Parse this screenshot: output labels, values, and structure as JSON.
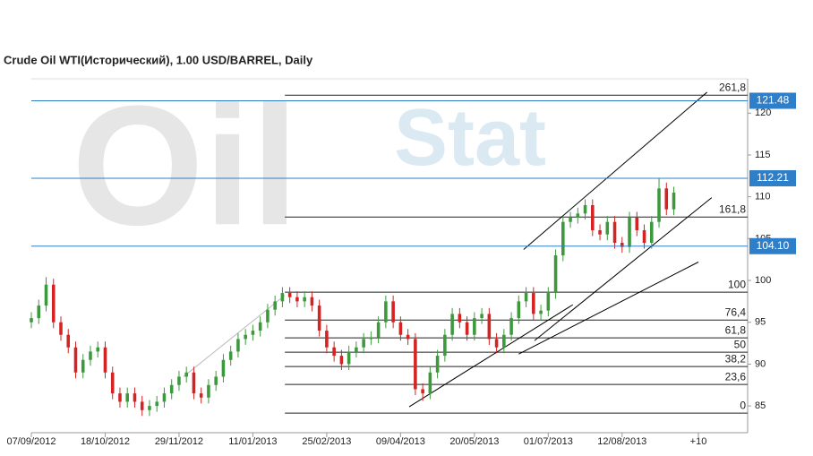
{
  "chart_data": {
    "type": "candlestick",
    "title": "Crude Oil WTI(Исторический), 1.00 USD/BARREL, Daily",
    "watermark": [
      "Oil",
      "Stat"
    ],
    "x": [
      0,
      3,
      6,
      9,
      12,
      15,
      18,
      21,
      24,
      27,
      30,
      33,
      36,
      39,
      42,
      45,
      48,
      51,
      54,
      57,
      60,
      63,
      66,
      69,
      72,
      75,
      78,
      81,
      84,
      87,
      90,
      93,
      96,
      99,
      102,
      105,
      108,
      111,
      114,
      117,
      120,
      123,
      126,
      129,
      132,
      135,
      138,
      141,
      144,
      147,
      150,
      153,
      156,
      159,
      162,
      165,
      168,
      171,
      174,
      177,
      180,
      183,
      186,
      189,
      192,
      195,
      198,
      201,
      204,
      207,
      210,
      213,
      216,
      219,
      222,
      225,
      228,
      231,
      234,
      237,
      240,
      243,
      246,
      249,
      252,
      255,
      258,
      261
    ],
    "open": [
      95,
      95.5,
      97,
      99.5,
      95,
      93.5,
      92,
      89,
      90.5,
      91.5,
      92,
      89,
      86.5,
      85.5,
      86.5,
      85.5,
      84.5,
      85,
      85.5,
      86.5,
      87.5,
      88.5,
      89,
      86.5,
      86,
      87.5,
      88.5,
      90.5,
      91.5,
      93,
      93.5,
      94,
      95,
      96.5,
      97.5,
      98.5,
      98,
      97.5,
      98,
      97,
      94,
      92,
      91,
      90,
      91.5,
      92,
      93,
      93.2,
      95,
      97.5,
      95,
      93.5,
      93,
      87,
      86.5,
      89,
      91,
      93.5,
      96,
      95,
      93.5,
      95.5,
      96,
      93,
      92,
      93.5,
      95.5,
      97.5,
      98.5,
      96,
      96.4,
      98.5,
      103,
      107,
      107.5,
      108,
      109,
      106,
      105.5,
      107,
      104.5,
      104,
      107.5,
      106,
      104.5,
      107,
      111,
      108.5
    ],
    "high": [
      96.2,
      97.7,
      100.4,
      100.2,
      95.7,
      94.2,
      92.7,
      91.2,
      92.2,
      92.7,
      92.7,
      89.7,
      87.2,
      87.2,
      87.2,
      86.2,
      85.7,
      86.2,
      87.2,
      88.2,
      89.2,
      89.7,
      89.7,
      87.2,
      88.2,
      89.2,
      91.2,
      92.2,
      93.7,
      94.2,
      94.7,
      95.7,
      97.2,
      98.2,
      99.2,
      99.2,
      98.7,
      98.7,
      98.7,
      97.7,
      94.7,
      92.7,
      91.7,
      92.2,
      92.7,
      93.7,
      93.9,
      95.7,
      98.2,
      98.2,
      95.7,
      94.2,
      93.7,
      87.7,
      89.7,
      91.7,
      94.2,
      96.7,
      96.7,
      95.7,
      96.2,
      96.7,
      96.7,
      93.7,
      94.2,
      96.2,
      98.2,
      99.2,
      99.2,
      97.1,
      99.2,
      103.7,
      107.7,
      108.2,
      108.7,
      109.7,
      109.7,
      106.7,
      107.7,
      107.7,
      105.2,
      108.2,
      108.2,
      106.7,
      107.7,
      112.2,
      111.7,
      111.2
    ],
    "low": [
      94.3,
      94.8,
      96.3,
      94.3,
      92.8,
      91.3,
      88.3,
      88.3,
      89.8,
      90.8,
      88.3,
      85.8,
      84.8,
      84.8,
      84.8,
      83.8,
      83.8,
      84.3,
      84.8,
      85.8,
      86.8,
      87.8,
      85.8,
      85.3,
      85.3,
      86.8,
      87.8,
      89.8,
      90.8,
      92.3,
      92.8,
      93.3,
      94.3,
      95.8,
      96.8,
      97.3,
      96.8,
      96.8,
      96.3,
      93.3,
      91.3,
      90.3,
      89.3,
      89.3,
      90.8,
      91.3,
      92.3,
      92.5,
      94.3,
      94.3,
      92.8,
      92.3,
      86.3,
      85.6,
      85.8,
      88.3,
      90.3,
      92.8,
      94.3,
      92.8,
      92.8,
      94.8,
      92.3,
      91.3,
      91.3,
      92.8,
      94.8,
      96.8,
      95.3,
      95.3,
      95.7,
      97.8,
      102.3,
      106.3,
      106.8,
      107.3,
      105.3,
      104.8,
      104.8,
      103.8,
      103.3,
      103.3,
      105.3,
      103.8,
      103.8,
      106.3,
      107.8,
      107.8
    ],
    "close": [
      95.5,
      97,
      99.5,
      95,
      93.5,
      92,
      89,
      90.5,
      91.5,
      92,
      89,
      86.5,
      85.5,
      86.5,
      85.5,
      84.5,
      85,
      85.5,
      86.5,
      87.5,
      88.5,
      89,
      86.5,
      86,
      87.5,
      88.5,
      90.5,
      91.5,
      93,
      93.5,
      94,
      95,
      96.5,
      97.5,
      98.5,
      98,
      97.5,
      98,
      97,
      94,
      92,
      91,
      90,
      91.5,
      92,
      93,
      93.2,
      95,
      97.5,
      95,
      93.5,
      93,
      87,
      86.5,
      89,
      91,
      93.5,
      96,
      95,
      93.5,
      95.5,
      96,
      93,
      92,
      93.5,
      95.5,
      97.5,
      98.5,
      96,
      96.4,
      98.5,
      103,
      107,
      107.5,
      108,
      109,
      106,
      105.5,
      107,
      104.5,
      104,
      107.5,
      106,
      104.5,
      107,
      111,
      108.5,
      110.5
    ],
    "up_color": "#3c9a3c",
    "down_color": "#d42323",
    "xlim": [
      0,
      291
    ],
    "xticks": [
      {
        "value": 0,
        "label": "07/09/2012"
      },
      {
        "value": 30,
        "label": "18/10/2012"
      },
      {
        "value": 60,
        "label": "29/11/2012"
      },
      {
        "value": 90,
        "label": "11/01/2013"
      },
      {
        "value": 120,
        "label": "25/02/2013"
      },
      {
        "value": 150,
        "label": "09/04/2013"
      },
      {
        "value": 180,
        "label": "20/05/2013"
      },
      {
        "value": 210,
        "label": "01/07/2013"
      },
      {
        "value": 240,
        "label": "12/08/2013"
      },
      {
        "value": 271,
        "label": "+10"
      }
    ],
    "ylim": [
      81.8,
      124.1
    ],
    "yticks": [
      85,
      90,
      95,
      100,
      105,
      110,
      115,
      120
    ],
    "levels": [
      {
        "value": 121.48,
        "label": "121.48"
      },
      {
        "value": 112.21,
        "label": "112.21"
      },
      {
        "value": 104.1,
        "label": "104.10"
      }
    ],
    "level_color": "#2f7fc8",
    "fibonacci": {
      "x_start": 103,
      "levels": [
        {
          "value": 122.14,
          "label": "261,8"
        },
        {
          "value": 107.58,
          "label": "161,8"
        },
        {
          "value": 98.6,
          "label": "100"
        },
        {
          "value": 95.27,
          "label": "76,4"
        },
        {
          "value": 93.14,
          "label": "61,8"
        },
        {
          "value": 91.42,
          "label": "50"
        },
        {
          "value": 89.71,
          "label": "38,2"
        },
        {
          "value": 87.57,
          "label": "23,6"
        },
        {
          "value": 84.14,
          "label": "0"
        }
      ]
    },
    "trend_lines": [
      {
        "x": [
          200,
          274.5
        ],
        "y": [
          103.7,
          122.5
        ],
        "color": "#000000"
      },
      {
        "x": [
          204.4,
          276.4
        ],
        "y": [
          92.8,
          109.9
        ],
        "color": "#000000"
      },
      {
        "x": [
          198,
          271
        ],
        "y": [
          91.2,
          102.2
        ],
        "color": "#000000"
      },
      {
        "x": [
          153.5,
          220
        ],
        "y": [
          84.9,
          97.1
        ],
        "color": "#000000"
      },
      {
        "x": [
          61.8,
          102.9
        ],
        "y": [
          88.5,
          98.2
        ],
        "color": "#bbbbbb"
      }
    ]
  }
}
